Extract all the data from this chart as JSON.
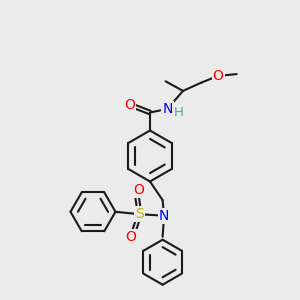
{
  "bg_color": "#ebebeb",
  "bond_color": "#1a1a1a",
  "bond_width": 1.5,
  "atom_colors": {
    "O": "#ff0000",
    "N": "#0000ff",
    "S": "#b8b800",
    "H": "#4da6a6",
    "C": "#1a1a1a"
  },
  "font_size": 8.5,
  "fig_size": [
    3.0,
    3.0
  ],
  "dpi": 100,
  "xlim": [
    0,
    10
  ],
  "ylim": [
    0,
    10
  ]
}
